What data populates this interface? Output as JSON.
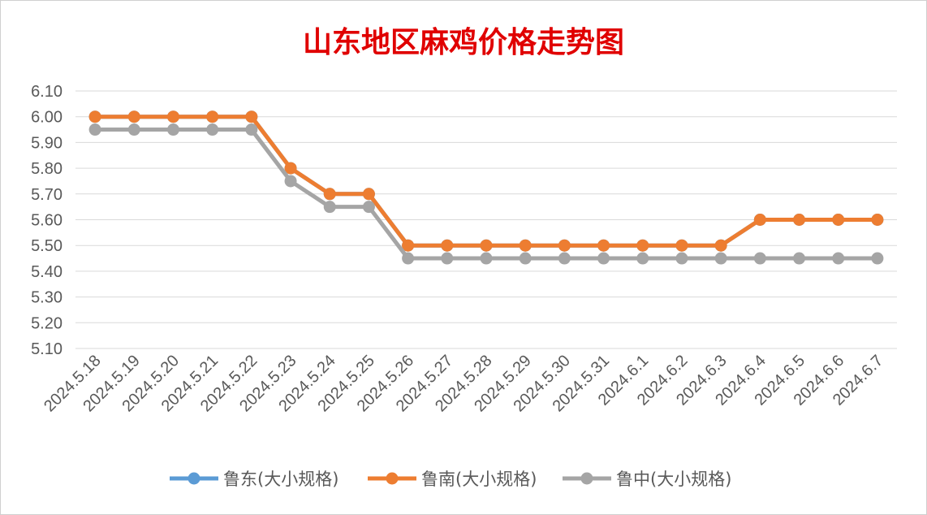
{
  "chart_data": {
    "type": "line",
    "title": "山东地区麻鸡价格走势图",
    "xlabel": "",
    "ylabel": "",
    "categories": [
      "2024.5.18",
      "2024.5.19",
      "2024.5.20",
      "2024.5.21",
      "2024.5.22",
      "2024.5.23",
      "2024.5.24",
      "2024.5.25",
      "2024.5.26",
      "2024.5.27",
      "2024.5.28",
      "2024.5.29",
      "2024.5.30",
      "2024.5.31",
      "2024.6.1",
      "2024.6.2",
      "2024.6.3",
      "2024.6.4",
      "2024.6.5",
      "2024.6.6",
      "2024.6.7"
    ],
    "ylim": [
      5.1,
      6.1
    ],
    "yticks": [
      "6.10",
      "6.00",
      "5.90",
      "5.80",
      "5.70",
      "5.60",
      "5.50",
      "5.40",
      "5.30",
      "5.20",
      "5.10"
    ],
    "grid": true,
    "legend": "bottom",
    "series": [
      {
        "name": "鲁东(大小规格)",
        "color": "#5b9bd5",
        "values": [
          6.0,
          6.0,
          6.0,
          6.0,
          6.0,
          5.8,
          5.7,
          5.7,
          5.5,
          5.5,
          5.5,
          5.5,
          5.5,
          5.5,
          5.5,
          5.5,
          5.5,
          5.6,
          5.6,
          5.6,
          5.6
        ]
      },
      {
        "name": "鲁南(大小规格)",
        "color": "#ed7d31",
        "values": [
          6.0,
          6.0,
          6.0,
          6.0,
          6.0,
          5.8,
          5.7,
          5.7,
          5.5,
          5.5,
          5.5,
          5.5,
          5.5,
          5.5,
          5.5,
          5.5,
          5.5,
          5.6,
          5.6,
          5.6,
          5.6
        ]
      },
      {
        "name": "鲁中(大小规格)",
        "color": "#a5a5a5",
        "values": [
          5.95,
          5.95,
          5.95,
          5.95,
          5.95,
          5.75,
          5.65,
          5.65,
          5.45,
          5.45,
          5.45,
          5.45,
          5.45,
          5.45,
          5.45,
          5.45,
          5.45,
          5.45,
          5.45,
          5.45,
          5.45
        ]
      }
    ]
  }
}
